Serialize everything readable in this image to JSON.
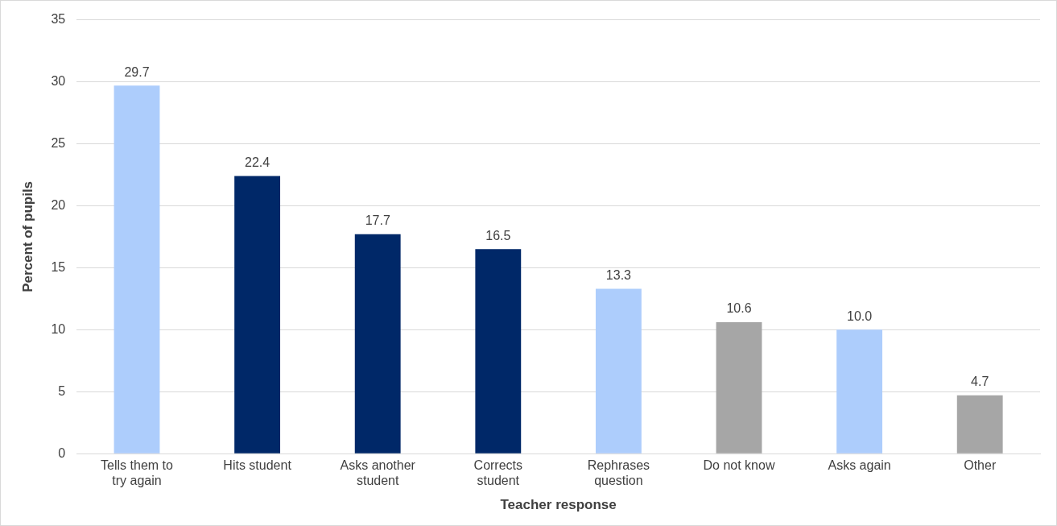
{
  "chart_data": {
    "type": "bar",
    "xlabel": "Teacher response",
    "ylabel": "Percent of pupils",
    "categories": [
      "Tells them to try again",
      "Hits student",
      "Asks another student",
      "Corrects student",
      "Rephrases question",
      "Do not know",
      "Asks again",
      "Other"
    ],
    "values": [
      29.7,
      22.4,
      17.7,
      16.5,
      13.3,
      10.6,
      10.0,
      4.7
    ],
    "value_labels": [
      "29.7",
      "22.4",
      "17.7",
      "16.5",
      "13.3",
      "10.6",
      "10.0",
      "4.7"
    ],
    "colors": [
      "#adcdfc",
      "#002868",
      "#002868",
      "#002868",
      "#adcdfc",
      "#a6a6a6",
      "#adcdfc",
      "#a6a6a6"
    ],
    "ylim": [
      0,
      35
    ],
    "yticks": [
      0,
      5,
      10,
      15,
      20,
      25,
      30,
      35
    ],
    "grid": "y",
    "legend": false
  }
}
